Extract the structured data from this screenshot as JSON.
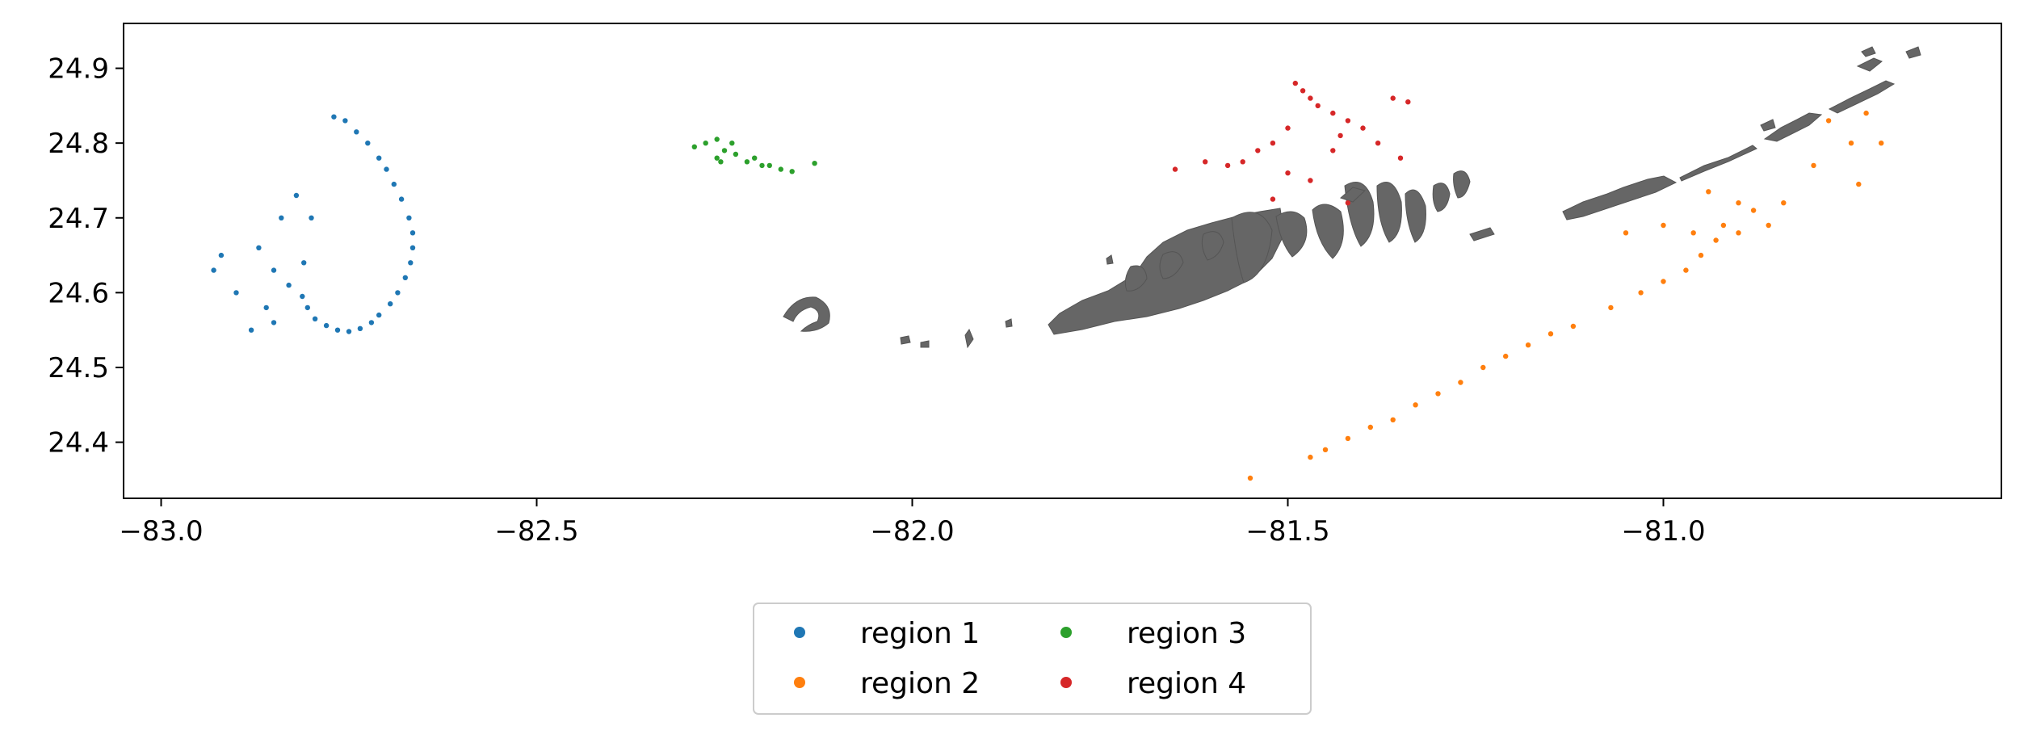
{
  "chart_data": {
    "type": "scatter",
    "title": "",
    "xlabel": "",
    "ylabel": "",
    "xlim": [
      -83.05,
      -80.55
    ],
    "ylim": [
      24.325,
      24.96
    ],
    "xticks": [
      -83.0,
      -82.5,
      -82.0,
      -81.5,
      -81.0
    ],
    "xtick_labels": [
      "−83.0",
      "−82.5",
      "−82.0",
      "−81.5",
      "−81.0"
    ],
    "yticks": [
      24.4,
      24.5,
      24.6,
      24.7,
      24.8,
      24.9
    ],
    "ytick_labels": [
      "24.4",
      "24.5",
      "24.6",
      "24.7",
      "24.8",
      "24.9"
    ],
    "grid": false,
    "legend_placement": "below-center",
    "legend_columns": 2,
    "land_color": "#666666",
    "series": [
      {
        "name": "region 1",
        "color": "#1f77b4",
        "points": [
          [
            -82.77,
            24.835
          ],
          [
            -82.755,
            24.83
          ],
          [
            -82.74,
            24.815
          ],
          [
            -82.725,
            24.8
          ],
          [
            -82.71,
            24.78
          ],
          [
            -82.7,
            24.765
          ],
          [
            -82.69,
            24.745
          ],
          [
            -82.68,
            24.725
          ],
          [
            -82.67,
            24.7
          ],
          [
            -82.665,
            24.68
          ],
          [
            -82.665,
            24.66
          ],
          [
            -82.668,
            24.64
          ],
          [
            -82.675,
            24.62
          ],
          [
            -82.685,
            24.6
          ],
          [
            -82.695,
            24.585
          ],
          [
            -82.71,
            24.57
          ],
          [
            -82.72,
            24.56
          ],
          [
            -82.735,
            24.552
          ],
          [
            -82.75,
            24.548
          ],
          [
            -82.765,
            24.55
          ],
          [
            -82.78,
            24.556
          ],
          [
            -82.795,
            24.565
          ],
          [
            -82.805,
            24.58
          ],
          [
            -82.812,
            24.595
          ],
          [
            -82.83,
            24.61
          ],
          [
            -82.85,
            24.63
          ],
          [
            -82.87,
            24.66
          ],
          [
            -82.84,
            24.7
          ],
          [
            -82.82,
            24.73
          ],
          [
            -82.8,
            24.7
          ],
          [
            -82.81,
            24.64
          ],
          [
            -82.86,
            24.58
          ],
          [
            -82.9,
            24.6
          ],
          [
            -82.93,
            24.63
          ],
          [
            -82.92,
            24.65
          ],
          [
            -82.88,
            24.55
          ],
          [
            -82.85,
            24.56
          ]
        ]
      },
      {
        "name": "region 2",
        "color": "#ff7f0e",
        "points": [
          [
            -81.55,
            24.352
          ],
          [
            -81.47,
            24.38
          ],
          [
            -81.45,
            24.39
          ],
          [
            -81.42,
            24.405
          ],
          [
            -81.39,
            24.42
          ],
          [
            -81.36,
            24.43
          ],
          [
            -81.33,
            24.45
          ],
          [
            -81.3,
            24.465
          ],
          [
            -81.27,
            24.48
          ],
          [
            -81.24,
            24.5
          ],
          [
            -81.21,
            24.515
          ],
          [
            -81.18,
            24.53
          ],
          [
            -81.15,
            24.545
          ],
          [
            -81.12,
            24.555
          ],
          [
            -81.07,
            24.58
          ],
          [
            -81.03,
            24.6
          ],
          [
            -81.0,
            24.615
          ],
          [
            -80.97,
            24.63
          ],
          [
            -80.95,
            24.65
          ],
          [
            -80.93,
            24.67
          ],
          [
            -80.92,
            24.69
          ],
          [
            -80.9,
            24.72
          ],
          [
            -80.88,
            24.71
          ],
          [
            -80.86,
            24.69
          ],
          [
            -80.84,
            24.72
          ],
          [
            -80.9,
            24.68
          ],
          [
            -80.96,
            24.68
          ],
          [
            -81.0,
            24.69
          ],
          [
            -81.05,
            24.68
          ],
          [
            -80.94,
            24.735
          ],
          [
            -80.78,
            24.83
          ],
          [
            -80.75,
            24.8
          ],
          [
            -80.73,
            24.84
          ],
          [
            -80.71,
            24.8
          ],
          [
            -80.74,
            24.745
          ],
          [
            -80.8,
            24.77
          ]
        ]
      },
      {
        "name": "region 3",
        "color": "#2ca02c",
        "points": [
          [
            -82.29,
            24.795
          ],
          [
            -82.275,
            24.8
          ],
          [
            -82.26,
            24.805
          ],
          [
            -82.25,
            24.79
          ],
          [
            -82.24,
            24.8
          ],
          [
            -82.235,
            24.785
          ],
          [
            -82.22,
            24.775
          ],
          [
            -82.21,
            24.78
          ],
          [
            -82.2,
            24.77
          ],
          [
            -82.19,
            24.77
          ],
          [
            -82.175,
            24.765
          ],
          [
            -82.16,
            24.762
          ],
          [
            -82.13,
            24.773
          ],
          [
            -82.26,
            24.78
          ],
          [
            -82.255,
            24.775
          ]
        ]
      },
      {
        "name": "region 4",
        "color": "#d62728",
        "points": [
          [
            -81.49,
            24.88
          ],
          [
            -81.48,
            24.87
          ],
          [
            -81.47,
            24.86
          ],
          [
            -81.46,
            24.85
          ],
          [
            -81.44,
            24.84
          ],
          [
            -81.42,
            24.83
          ],
          [
            -81.4,
            24.82
          ],
          [
            -81.38,
            24.8
          ],
          [
            -81.36,
            24.86
          ],
          [
            -81.34,
            24.855
          ],
          [
            -81.35,
            24.78
          ],
          [
            -81.5,
            24.82
          ],
          [
            -81.52,
            24.8
          ],
          [
            -81.54,
            24.79
          ],
          [
            -81.56,
            24.775
          ],
          [
            -81.58,
            24.77
          ],
          [
            -81.61,
            24.775
          ],
          [
            -81.65,
            24.765
          ],
          [
            -81.5,
            24.76
          ],
          [
            -81.47,
            24.75
          ],
          [
            -81.44,
            24.79
          ],
          [
            -81.43,
            24.81
          ],
          [
            -81.52,
            24.725
          ],
          [
            -81.42,
            24.72
          ]
        ]
      }
    ]
  }
}
